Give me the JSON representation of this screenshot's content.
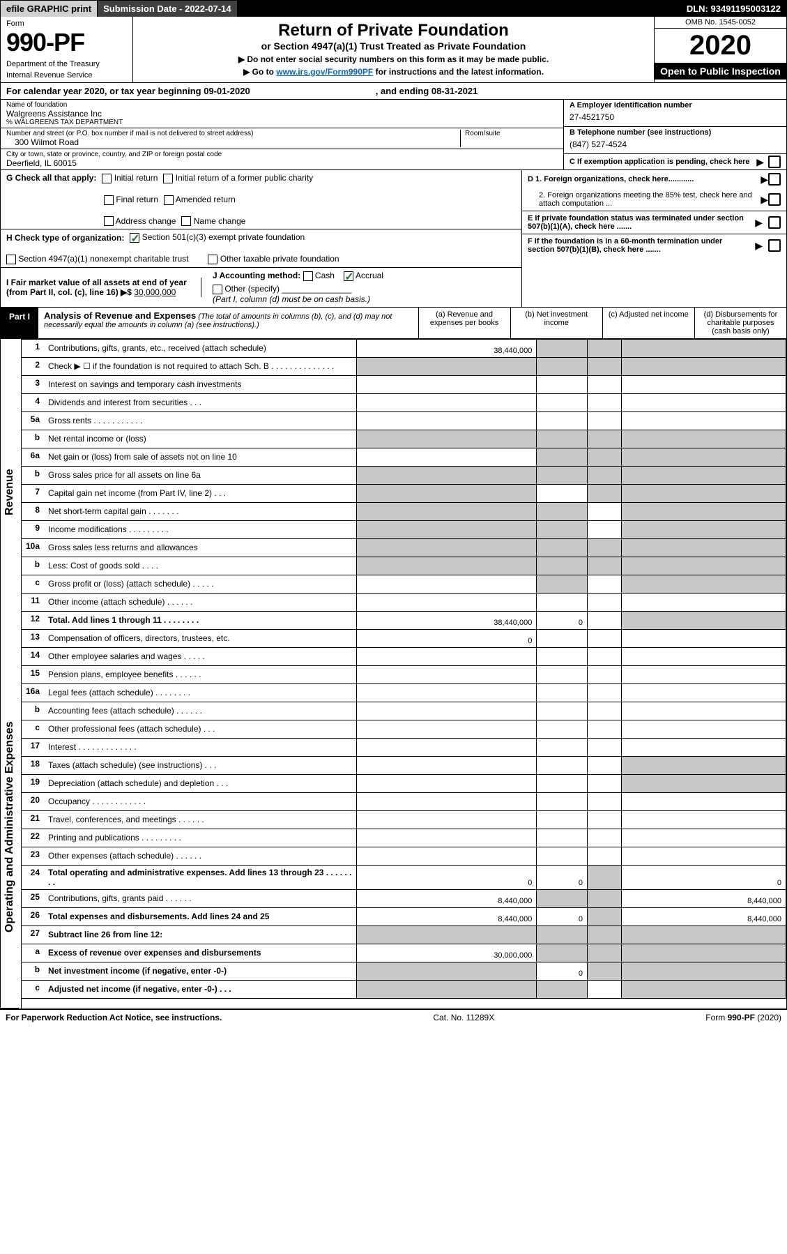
{
  "topbar": {
    "efile": "efile GRAPHIC print",
    "subdate_label": "Submission Date - 2022-07-14",
    "dln": "DLN: 93491195003122"
  },
  "header": {
    "form_word": "Form",
    "form_num": "990-PF",
    "dept1": "Department of the Treasury",
    "dept2": "Internal Revenue Service",
    "title": "Return of Private Foundation",
    "subtitle": "or Section 4947(a)(1) Trust Treated as Private Foundation",
    "instr1": "▶ Do not enter social security numbers on this form as it may be made public.",
    "instr2_pre": "▶ Go to ",
    "instr2_link": "www.irs.gov/Form990PF",
    "instr2_post": " for instructions and the latest information.",
    "omb": "OMB No. 1545-0052",
    "year": "2020",
    "open": "Open to Public Inspection"
  },
  "calyear": {
    "pre": "For calendar year 2020, or tax year beginning 09-01-2020",
    "mid_spacer": "",
    "post": ", and ending 08-31-2021"
  },
  "entity": {
    "name_label": "Name of foundation",
    "name": "Walgreens Assistance Inc",
    "co": "% WALGREENS TAX DEPARTMENT",
    "addr_label": "Number and street (or P.O. box number if mail is not delivered to street address)",
    "addr": "300 Wilmot Road",
    "room_label": "Room/suite",
    "city_label": "City or town, state or province, country, and ZIP or foreign postal code",
    "city": "Deerfield, IL  60015",
    "ein_label": "A Employer identification number",
    "ein": "27-4521750",
    "phone_label": "B Telephone number (see instructions)",
    "phone": "(847) 527-4524",
    "c_label": "C If exemption application is pending, check here"
  },
  "checks": {
    "g_label": "G Check all that apply:",
    "g_initial": "Initial return",
    "g_initial_pub": "Initial return of a former public charity",
    "g_final": "Final return",
    "g_amended": "Amended return",
    "g_addr": "Address change",
    "g_name": "Name change",
    "h_label": "H Check type of organization:",
    "h_501c3": "Section 501(c)(3) exempt private foundation",
    "h_4947": "Section 4947(a)(1) nonexempt charitable trust",
    "h_other": "Other taxable private foundation",
    "i_label": "I Fair market value of all assets at end of year (from Part II, col. (c), line 16) ▶$",
    "i_value": "30,000,000",
    "j_label": "J Accounting method:",
    "j_cash": "Cash",
    "j_accrual": "Accrual",
    "j_other": "Other (specify)",
    "j_note": "(Part I, column (d) must be on cash basis.)",
    "d1": "D 1. Foreign organizations, check here............",
    "d2": "2. Foreign organizations meeting the 85% test, check here and attach computation ...",
    "e": "E  If private foundation status was terminated under section 507(b)(1)(A), check here .......",
    "f": "F  If the foundation is in a 60-month termination under section 507(b)(1)(B), check here .......",
    "arrow": "▶"
  },
  "part1": {
    "label": "Part I",
    "title": "Analysis of Revenue and Expenses",
    "note": "(The total of amounts in columns (b), (c), and (d) may not necessarily equal the amounts in column (a) (see instructions).)",
    "col_a": "(a)   Revenue and expenses per books",
    "col_b": "(b)   Net investment income",
    "col_c": "(c)   Adjusted net income",
    "col_d": "(d)  Disbursements for charitable purposes (cash basis only)"
  },
  "side": {
    "revenue": "Revenue",
    "expenses": "Operating and Administrative Expenses"
  },
  "rows": [
    {
      "n": "1",
      "d": "Contributions, gifts, grants, etc., received (attach schedule)",
      "a": "38,440,000",
      "shade": [
        "b",
        "c",
        "d"
      ]
    },
    {
      "n": "2",
      "d": "Check ▶ ☐ if the foundation is not required to attach Sch. B   .  .  .  .  .  .  .  .  .  .  .  .  .  .",
      "shade": [
        "a",
        "b",
        "c",
        "d"
      ]
    },
    {
      "n": "3",
      "d": "Interest on savings and temporary cash investments"
    },
    {
      "n": "4",
      "d": "Dividends and interest from securities    .   .   ."
    },
    {
      "n": "5a",
      "d": "Gross rents    .   .   .   .   .   .   .   .   .   .   ."
    },
    {
      "n": "b",
      "d": "Net rental income or (loss)",
      "shade": [
        "a",
        "b",
        "c",
        "d"
      ]
    },
    {
      "n": "6a",
      "d": "Net gain or (loss) from sale of assets not on line 10",
      "shade": [
        "b",
        "c",
        "d"
      ]
    },
    {
      "n": "b",
      "d": "Gross sales price for all assets on line 6a",
      "shade": [
        "a",
        "b",
        "c",
        "d"
      ]
    },
    {
      "n": "7",
      "d": "Capital gain net income (from Part IV, line 2)   .   .   .",
      "shade": [
        "a",
        "c",
        "d"
      ]
    },
    {
      "n": "8",
      "d": "Net short-term capital gain  .   .   .   .   .   .   .",
      "shade": [
        "a",
        "b",
        "d"
      ]
    },
    {
      "n": "9",
      "d": "Income modifications  .   .   .   .   .   .   .   .   .",
      "shade": [
        "a",
        "b",
        "d"
      ]
    },
    {
      "n": "10a",
      "d": "Gross sales less returns and allowances",
      "shade": [
        "a",
        "b",
        "c",
        "d"
      ]
    },
    {
      "n": "b",
      "d": "Less: Cost of goods sold    .   .   .   .",
      "shade": [
        "a",
        "b",
        "c",
        "d"
      ]
    },
    {
      "n": "c",
      "d": "Gross profit or (loss) (attach schedule)    .   .   .   .   .",
      "shade": [
        "b",
        "d"
      ]
    },
    {
      "n": "11",
      "d": "Other income (attach schedule)    .   .   .   .   .   ."
    },
    {
      "n": "12",
      "d": "Total. Add lines 1 through 11   .   .   .   .   .   .   .   .",
      "b": true,
      "a": "38,440,000",
      "bv": "0",
      "shade": [
        "d"
      ]
    },
    {
      "n": "13",
      "d": "Compensation of officers, directors, trustees, etc.",
      "a": "0"
    },
    {
      "n": "14",
      "d": "Other employee salaries and wages   .   .   .   .   ."
    },
    {
      "n": "15",
      "d": "Pension plans, employee benefits  .   .   .   .   .   ."
    },
    {
      "n": "16a",
      "d": "Legal fees (attach schedule)  .   .   .   .   .   .   .   ."
    },
    {
      "n": "b",
      "d": "Accounting fees (attach schedule)  .   .   .   .   .   ."
    },
    {
      "n": "c",
      "d": "Other professional fees (attach schedule)    .   .   ."
    },
    {
      "n": "17",
      "d": "Interest  .   .   .   .   .   .   .   .   .   .   .   .   ."
    },
    {
      "n": "18",
      "d": "Taxes (attach schedule) (see instructions)    .   .   .",
      "shade": [
        "d"
      ]
    },
    {
      "n": "19",
      "d": "Depreciation (attach schedule) and depletion   .   .   .",
      "shade": [
        "d"
      ]
    },
    {
      "n": "20",
      "d": "Occupancy  .   .   .   .   .   .   .   .   .   .   .   ."
    },
    {
      "n": "21",
      "d": "Travel, conferences, and meetings  .   .   .   .   .   ."
    },
    {
      "n": "22",
      "d": "Printing and publications  .   .   .   .   .   .   .   .   ."
    },
    {
      "n": "23",
      "d": "Other expenses (attach schedule)  .   .   .   .   .   ."
    },
    {
      "n": "24",
      "d": "Total operating and administrative expenses. Add lines 13 through 23   .   .   .   .   .   .   .   .",
      "b": true,
      "a": "0",
      "bv": "0",
      "shade": [
        "c"
      ],
      "dv": "0"
    },
    {
      "n": "25",
      "d": "Contributions, gifts, grants paid    .   .   .   .   .   .",
      "a": "8,440,000",
      "shade": [
        "b",
        "c"
      ],
      "dv": "8,440,000"
    },
    {
      "n": "26",
      "d": "Total expenses and disbursements. Add lines 24 and 25",
      "b": true,
      "a": "8,440,000",
      "bv": "0",
      "shade": [
        "c"
      ],
      "dv": "8,440,000"
    },
    {
      "n": "27",
      "d": "Subtract line 26 from line 12:",
      "b": true,
      "shade": [
        "a",
        "b",
        "c",
        "d"
      ]
    },
    {
      "n": "a",
      "d": "Excess of revenue over expenses and disbursements",
      "b": true,
      "a": "30,000,000",
      "shade": [
        "b",
        "c",
        "d"
      ]
    },
    {
      "n": "b",
      "d": "Net investment income (if negative, enter -0-)",
      "b": true,
      "shade": [
        "a",
        "c",
        "d"
      ],
      "bv": "0"
    },
    {
      "n": "c",
      "d": "Adjusted net income (if negative, enter -0-)   .   .   .",
      "b": true,
      "shade": [
        "a",
        "b",
        "d"
      ]
    }
  ],
  "footer": {
    "left": "For Paperwork Reduction Act Notice, see instructions.",
    "mid": "Cat. No. 11289X",
    "right": "Form 990-PF (2020)"
  }
}
